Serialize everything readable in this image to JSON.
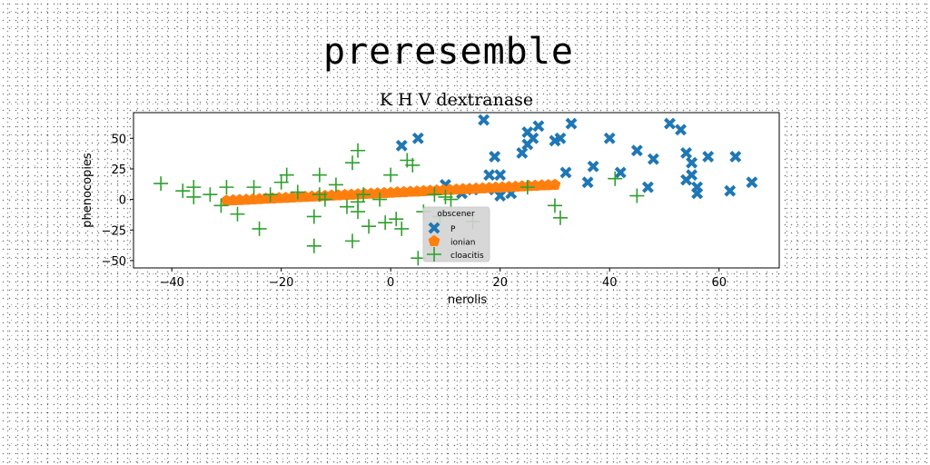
{
  "suptitle": "preresemble",
  "chart_data": {
    "type": "scatter",
    "title": "K H V dextranase",
    "xlabel": "nerolis",
    "ylabel": "phenocopies",
    "xlim": [
      -47,
      71
    ],
    "ylim": [
      -56,
      71
    ],
    "xticks": [
      -40,
      -20,
      0,
      20,
      40,
      60
    ],
    "yticks": [
      -50,
      -25,
      0,
      25,
      50
    ],
    "xtick_labels": [
      "−40",
      "−20",
      "0",
      "20",
      "40",
      "60"
    ],
    "ytick_labels": [
      "−50",
      "−25",
      "0",
      "25",
      "50"
    ],
    "grid": false,
    "legend": {
      "title": "obscener",
      "placement": "lower-center"
    },
    "series": [
      {
        "name": "P",
        "marker": "x-filled",
        "color": "#1f77b4",
        "points": [
          [
            17,
            65
          ],
          [
            5,
            50
          ],
          [
            2,
            44
          ],
          [
            19,
            35
          ],
          [
            18,
            20
          ],
          [
            20,
            20
          ],
          [
            19,
            8
          ],
          [
            20,
            3
          ],
          [
            22,
            5
          ],
          [
            25,
            55
          ],
          [
            26,
            50
          ],
          [
            27,
            60
          ],
          [
            25,
            45
          ],
          [
            24,
            38
          ],
          [
            30,
            48
          ],
          [
            31,
            50
          ],
          [
            33,
            62
          ],
          [
            32,
            22
          ],
          [
            36,
            14
          ],
          [
            37,
            27
          ],
          [
            40,
            50
          ],
          [
            42,
            22
          ],
          [
            45,
            40
          ],
          [
            48,
            33
          ],
          [
            47,
            10
          ],
          [
            51,
            62
          ],
          [
            53,
            57
          ],
          [
            54,
            38
          ],
          [
            55,
            30
          ],
          [
            55,
            20
          ],
          [
            54,
            16
          ],
          [
            56,
            10
          ],
          [
            56,
            5
          ],
          [
            58,
            35
          ],
          [
            62,
            7
          ],
          [
            63,
            35
          ],
          [
            66,
            14
          ],
          [
            10,
            12
          ],
          [
            15,
            8
          ],
          [
            13,
            5
          ]
        ]
      },
      {
        "name": "ionian",
        "marker": "pentagon",
        "color": "#ff7f0e",
        "points": [
          [
            -30.0,
            -1.0
          ],
          [
            -28.8,
            -0.7
          ],
          [
            -27.6,
            -0.5
          ],
          [
            -26.4,
            -0.2
          ],
          [
            -25.2,
            0.0
          ],
          [
            -24.0,
            0.3
          ],
          [
            -22.8,
            0.6
          ],
          [
            -21.6,
            0.8
          ],
          [
            -20.4,
            1.1
          ],
          [
            -19.2,
            1.3
          ],
          [
            -18.0,
            1.6
          ],
          [
            -16.8,
            1.9
          ],
          [
            -15.6,
            2.1
          ],
          [
            -14.4,
            2.4
          ],
          [
            -13.2,
            2.6
          ],
          [
            -12.0,
            2.9
          ],
          [
            -10.8,
            3.2
          ],
          [
            -9.6,
            3.4
          ],
          [
            -8.4,
            3.7
          ],
          [
            -7.2,
            3.9
          ],
          [
            -6.0,
            4.2
          ],
          [
            -4.8,
            4.5
          ],
          [
            -3.6,
            4.7
          ],
          [
            -2.4,
            5.0
          ],
          [
            -1.2,
            5.2
          ],
          [
            0.0,
            5.5
          ],
          [
            1.2,
            5.8
          ],
          [
            2.4,
            6.0
          ],
          [
            3.6,
            6.3
          ],
          [
            4.8,
            6.5
          ],
          [
            6.0,
            6.8
          ],
          [
            7.2,
            7.1
          ],
          [
            8.4,
            7.3
          ],
          [
            9.6,
            7.6
          ],
          [
            10.8,
            7.8
          ],
          [
            12.0,
            8.1
          ],
          [
            13.2,
            8.4
          ],
          [
            14.4,
            8.6
          ],
          [
            15.6,
            8.9
          ],
          [
            16.8,
            9.1
          ],
          [
            18.0,
            9.4
          ],
          [
            19.2,
            9.7
          ],
          [
            20.4,
            9.9
          ],
          [
            21.6,
            10.2
          ],
          [
            22.8,
            10.4
          ],
          [
            24.0,
            10.7
          ],
          [
            25.2,
            11.0
          ],
          [
            26.4,
            11.2
          ],
          [
            27.6,
            11.5
          ],
          [
            28.8,
            11.7
          ],
          [
            30.0,
            12.0
          ]
        ]
      },
      {
        "name": "cloacitis",
        "marker": "plus",
        "color": "#2ca02c",
        "points": [
          [
            -42,
            13
          ],
          [
            -38,
            7
          ],
          [
            -36,
            10
          ],
          [
            -36,
            2
          ],
          [
            -33,
            4
          ],
          [
            -31,
            -5
          ],
          [
            -30,
            10
          ],
          [
            -28,
            -12
          ],
          [
            -25,
            10
          ],
          [
            -24,
            -24
          ],
          [
            -22,
            4
          ],
          [
            -20,
            14
          ],
          [
            -19,
            20
          ],
          [
            -17,
            6
          ],
          [
            -14,
            -14
          ],
          [
            -14,
            -38
          ],
          [
            -13,
            20
          ],
          [
            -13,
            4
          ],
          [
            -12,
            0
          ],
          [
            -10,
            12
          ],
          [
            -8,
            -6
          ],
          [
            -7,
            30
          ],
          [
            -7,
            -34
          ],
          [
            -6,
            40
          ],
          [
            -6,
            -2
          ],
          [
            -6,
            -10
          ],
          [
            -5,
            4
          ],
          [
            -4,
            -22
          ],
          [
            -2,
            0
          ],
          [
            0,
            20
          ],
          [
            1,
            -16
          ],
          [
            2,
            -24
          ],
          [
            3,
            32
          ],
          [
            4,
            28
          ],
          [
            5,
            -48
          ],
          [
            6,
            -10
          ],
          [
            8,
            4
          ],
          [
            9,
            -14
          ],
          [
            10,
            2
          ],
          [
            11,
            0
          ],
          [
            15,
            -18
          ],
          [
            25,
            10
          ],
          [
            30,
            -5
          ],
          [
            31,
            -15
          ],
          [
            41,
            17
          ],
          [
            45,
            3
          ],
          [
            -1,
            -19
          ]
        ]
      }
    ]
  }
}
